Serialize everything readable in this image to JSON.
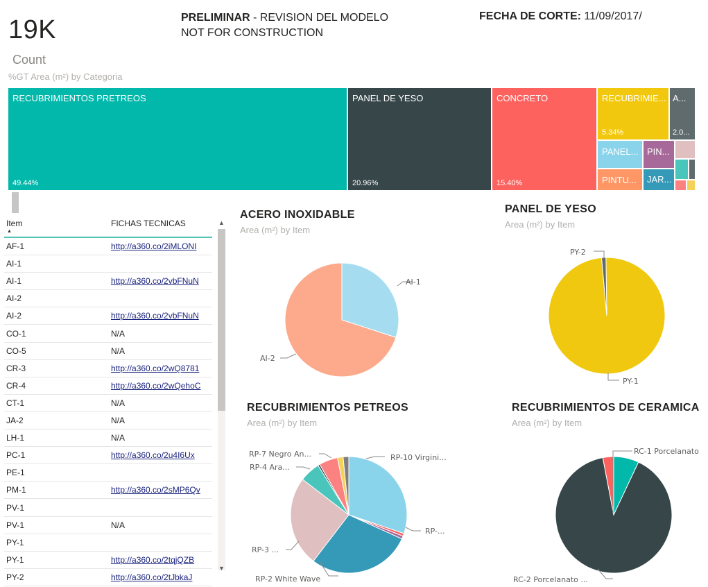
{
  "kpi": {
    "value": "19K",
    "label": "Count"
  },
  "header": {
    "prelim_bold": "PRELIMINAR",
    "prelim_rest": " - REVISION DEL MODELO",
    "line2": "NOT FOR CONSTRUCTION",
    "date_label": "FECHA DE CORTE:",
    "date_value": "11/09/2017/"
  },
  "treemap": {
    "title": "%GT Area (m²) by Categoria",
    "tiles": [
      {
        "label": "RECUBRIMIENTOS PRETREOS",
        "pct": "49.44%",
        "color": "#01b8aa"
      },
      {
        "label": "PANEL DE YESO",
        "pct": "20.96%",
        "color": "#374649"
      },
      {
        "label": "CONCRETO",
        "pct": "15.40%",
        "color": "#fd625e"
      },
      {
        "label": "RECUBRIMIE...",
        "pct": "5.34%",
        "color": "#f2c80f"
      },
      {
        "label": "A...",
        "pct": "2.0...",
        "color": "#5f6b6d"
      },
      {
        "label": "PANEL...",
        "pct": "",
        "color": "#8ad4eb"
      },
      {
        "label": "PIN...",
        "pct": "",
        "color": "#a66999"
      },
      {
        "label": "",
        "pct": "",
        "color": "#dfbfbf"
      },
      {
        "label": "PINTU...",
        "pct": "",
        "color": "#fe9666"
      },
      {
        "label": "JAR...",
        "pct": "",
        "color": "#3599b8"
      },
      {
        "label": "",
        "pct": "",
        "color": "#4ac5bb"
      },
      {
        "label": "",
        "pct": "",
        "color": "#5f6b6d"
      },
      {
        "label": "",
        "pct": "",
        "color": "#fb8281"
      },
      {
        "label": "",
        "pct": "",
        "color": "#f4d25a"
      }
    ]
  },
  "table": {
    "headers": [
      "Item",
      "FICHAS TECNICAS"
    ],
    "rows": [
      {
        "item": "AF-1",
        "ficha": "http://a360.co/2iMLONI",
        "link": true
      },
      {
        "item": "AI-1",
        "ficha": "",
        "link": false
      },
      {
        "item": "AI-1",
        "ficha": "http://a360.co/2vbFNuN",
        "link": true
      },
      {
        "item": "AI-2",
        "ficha": "",
        "link": false
      },
      {
        "item": "AI-2",
        "ficha": "http://a360.co/2vbFNuN",
        "link": true
      },
      {
        "item": "CO-1",
        "ficha": "N/A",
        "link": false
      },
      {
        "item": "CO-5",
        "ficha": "N/A",
        "link": false
      },
      {
        "item": "CR-3",
        "ficha": "http://a360.co/2wQ8781",
        "link": true
      },
      {
        "item": "CR-4",
        "ficha": "http://a360.co/2wQehoC",
        "link": true
      },
      {
        "item": "CT-1",
        "ficha": "N/A",
        "link": false
      },
      {
        "item": "JA-2",
        "ficha": "N/A",
        "link": false
      },
      {
        "item": "LH-1",
        "ficha": "N/A",
        "link": false
      },
      {
        "item": "PC-1",
        "ficha": "http://a360.co/2u4I6Ux",
        "link": true
      },
      {
        "item": "PE-1",
        "ficha": "",
        "link": false
      },
      {
        "item": "PM-1",
        "ficha": "http://a360.co/2sMP6Qv",
        "link": true
      },
      {
        "item": "PV-1",
        "ficha": "",
        "link": false
      },
      {
        "item": "PV-1",
        "ficha": "N/A",
        "link": false
      },
      {
        "item": "PY-1",
        "ficha": "",
        "link": false
      },
      {
        "item": "PY-1",
        "ficha": "http://a360.co/2tqjQZB",
        "link": true
      },
      {
        "item": "PY-2",
        "ficha": "http://a360.co/2tJbkaJ",
        "link": true
      }
    ]
  },
  "chart_data": [
    {
      "type": "pie",
      "title": "ACERO INOXIDABLE",
      "subtitle": "Area (m²) by Item",
      "slices": [
        {
          "label": "AI-1",
          "value": 30,
          "color": "#a6dcef"
        },
        {
          "label": "AI-2",
          "value": 70,
          "color": "#fda98b"
        }
      ]
    },
    {
      "type": "pie",
      "title": "PANEL DE YESO",
      "subtitle": "Area (m²) by Item",
      "slices": [
        {
          "label": "PY-1",
          "value": 98.8,
          "color": "#f0c80f"
        },
        {
          "label": "PY-2",
          "value": 1.2,
          "color": "#5f6b6d"
        }
      ]
    },
    {
      "type": "pie",
      "title": "RECUBRIMIENTOS PETREOS",
      "subtitle": "Area (m²) by Item",
      "slices": [
        {
          "label": "RP-10 Virgini...",
          "value": 29,
          "color": "#8ad4eb"
        },
        {
          "label": "RP-...",
          "value": 0.7,
          "color": "#fd625e"
        },
        {
          "label": "",
          "value": 0.8,
          "color": "#a66999"
        },
        {
          "label": "RP-2 White Wave",
          "value": 27.5,
          "color": "#3599b8"
        },
        {
          "label": "RP-3 ...",
          "value": 24,
          "color": "#dfbfbf"
        },
        {
          "label": "RP-4 Ara...",
          "value": 5.5,
          "color": "#4ac5bb"
        },
        {
          "label": "RP-7 Negro An...",
          "value": 0.5,
          "color": "#374649"
        },
        {
          "label": "",
          "value": 5,
          "color": "#fb8281"
        },
        {
          "label": "",
          "value": 1.5,
          "color": "#f4d25a"
        },
        {
          "label": "",
          "value": 1.5,
          "color": "#7f7f7f"
        }
      ]
    },
    {
      "type": "pie",
      "title": "RECUBRIMIENTOS DE CERAMICA",
      "subtitle": "Area (m²) by Item",
      "slices": [
        {
          "label": "RC-1 Porcelanato",
          "value": 7,
          "color": "#01b8aa"
        },
        {
          "label": "RC-2 Porcelanato ...",
          "value": 90,
          "color": "#374649"
        },
        {
          "label": "",
          "value": 3,
          "color": "#fd625e"
        }
      ]
    }
  ]
}
